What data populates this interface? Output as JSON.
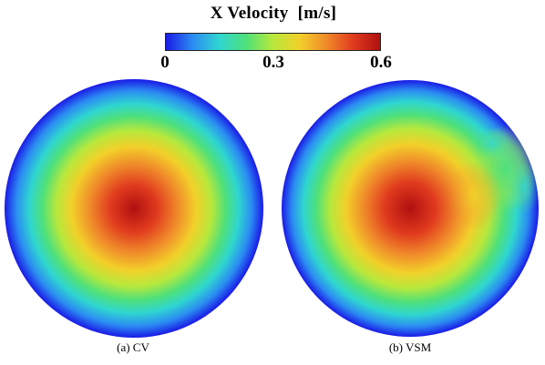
{
  "colorbar": {
    "title": "X Velocity  [m/s]",
    "ticks": [
      "0",
      "0.3",
      "0.6"
    ],
    "colors": [
      "#1a1ae6",
      "#2b8cf2",
      "#2fd6d0",
      "#4fe07a",
      "#b8e83c",
      "#f2d02a",
      "#f08a2a",
      "#e03a1e",
      "#b01010"
    ]
  },
  "panels": [
    {
      "caption": "(a) CV"
    },
    {
      "caption": "(b) VSM"
    }
  ]
}
